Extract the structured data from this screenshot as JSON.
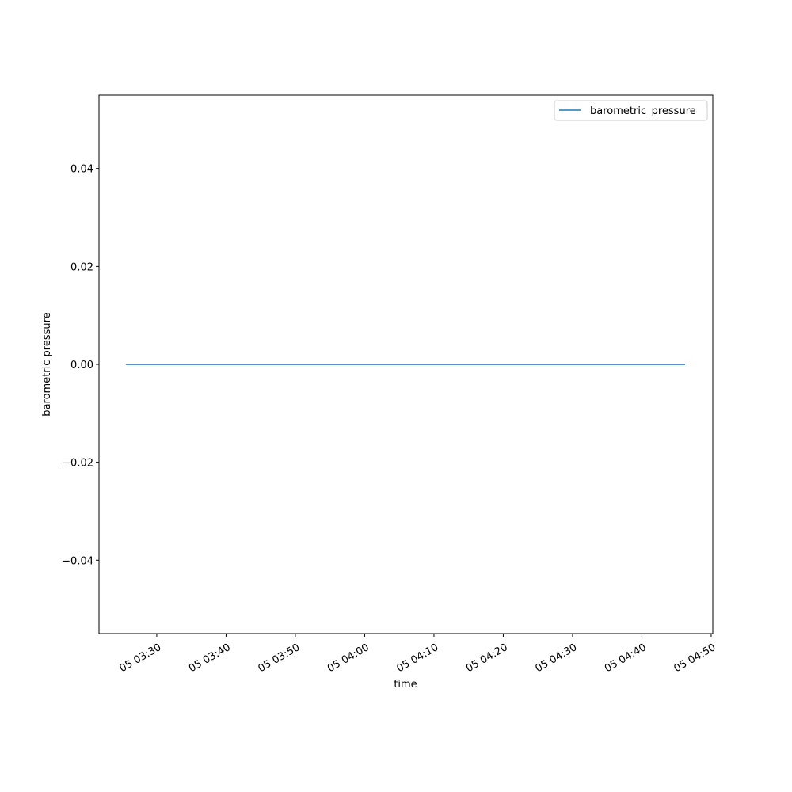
{
  "chart_data": {
    "type": "line",
    "title": "",
    "xlabel": "time",
    "ylabel": "barometric pressure",
    "x_tick_labels": [
      "05 03:30",
      "05 03:40",
      "05 03:50",
      "05 04:00",
      "05 04:10",
      "05 04:20",
      "05 04:30",
      "05 04:40",
      "05 04:50"
    ],
    "x_tick_times": [
      "03:30",
      "03:40",
      "03:50",
      "04:00",
      "04:10",
      "04:20",
      "04:30",
      "04:40",
      "04:50"
    ],
    "y_tick_labels": [
      "0.04",
      "0.02",
      "0.00",
      "−0.02",
      "−0.04"
    ],
    "y_tick_values": [
      0.04,
      0.02,
      0.0,
      -0.02,
      -0.04
    ],
    "xlim": [
      "03:21:40",
      "04:50:14"
    ],
    "ylim": [
      -0.055,
      0.055
    ],
    "grid": false,
    "legend_position": "top-right",
    "series": [
      {
        "name": "barometric_pressure",
        "color": "#1f77b4",
        "x": [
          "03:25:32",
          "04:46:14"
        ],
        "values": [
          0.0,
          0.0
        ]
      }
    ]
  }
}
